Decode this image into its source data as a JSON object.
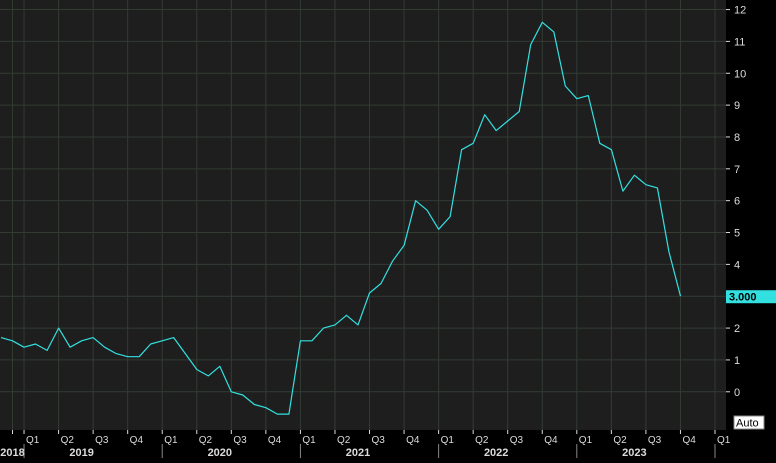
{
  "chart_data": {
    "type": "line",
    "title": "",
    "xlabel": "",
    "ylabel": "",
    "ylim": [
      -1.2,
      12.3
    ],
    "y_ticks": [
      0,
      1,
      2,
      3,
      4,
      5,
      6,
      7,
      8,
      9,
      10,
      11,
      12
    ],
    "grid": true,
    "x_range_months": [
      "2018-11",
      "2024-01"
    ],
    "quarter_ticks": [
      {
        "date": "2018-12",
        "label": ""
      },
      {
        "date": "2019-01",
        "label": "Q1"
      },
      {
        "date": "2019-04",
        "label": "Q2"
      },
      {
        "date": "2019-07",
        "label": "Q3"
      },
      {
        "date": "2019-10",
        "label": "Q4"
      },
      {
        "date": "2020-01",
        "label": "Q1"
      },
      {
        "date": "2020-04",
        "label": "Q2"
      },
      {
        "date": "2020-07",
        "label": "Q3"
      },
      {
        "date": "2020-10",
        "label": "Q4"
      },
      {
        "date": "2021-01",
        "label": "Q1"
      },
      {
        "date": "2021-04",
        "label": "Q2"
      },
      {
        "date": "2021-07",
        "label": "Q3"
      },
      {
        "date": "2021-10",
        "label": "Q4"
      },
      {
        "date": "2022-01",
        "label": "Q1"
      },
      {
        "date": "2022-04",
        "label": "Q2"
      },
      {
        "date": "2022-07",
        "label": "Q3"
      },
      {
        "date": "2022-10",
        "label": "Q4"
      },
      {
        "date": "2023-01",
        "label": "Q1"
      },
      {
        "date": "2023-04",
        "label": "Q2"
      },
      {
        "date": "2023-07",
        "label": "Q3"
      },
      {
        "date": "2023-10",
        "label": "Q4"
      },
      {
        "date": "2024-01",
        "label": "Q1"
      }
    ],
    "year_labels": [
      {
        "label": "2018",
        "date": "2018-12"
      },
      {
        "label": "2019",
        "date": "2019-06"
      },
      {
        "label": "2020",
        "date": "2020-06"
      },
      {
        "label": "2021",
        "date": "2021-06"
      },
      {
        "label": "2022",
        "date": "2022-06"
      },
      {
        "label": "2023",
        "date": "2023-06"
      }
    ],
    "series": [
      {
        "color": "#33e0e0",
        "points": [
          {
            "x": "2018-11",
            "y": 1.7
          },
          {
            "x": "2018-12",
            "y": 1.6
          },
          {
            "x": "2019-01",
            "y": 1.4
          },
          {
            "x": "2019-02",
            "y": 1.5
          },
          {
            "x": "2019-03",
            "y": 1.3
          },
          {
            "x": "2019-04",
            "y": 2.0
          },
          {
            "x": "2019-05",
            "y": 1.4
          },
          {
            "x": "2019-06",
            "y": 1.6
          },
          {
            "x": "2019-07",
            "y": 1.7
          },
          {
            "x": "2019-08",
            "y": 1.4
          },
          {
            "x": "2019-09",
            "y": 1.2
          },
          {
            "x": "2019-10",
            "y": 1.1
          },
          {
            "x": "2019-11",
            "y": 1.1
          },
          {
            "x": "2019-12",
            "y": 1.5
          },
          {
            "x": "2020-01",
            "y": 1.6
          },
          {
            "x": "2020-02",
            "y": 1.7
          },
          {
            "x": "2020-03",
            "y": 1.2
          },
          {
            "x": "2020-04",
            "y": 0.7
          },
          {
            "x": "2020-05",
            "y": 0.5
          },
          {
            "x": "2020-06",
            "y": 0.8
          },
          {
            "x": "2020-07",
            "y": 0.0
          },
          {
            "x": "2020-08",
            "y": -0.1
          },
          {
            "x": "2020-09",
            "y": -0.4
          },
          {
            "x": "2020-10",
            "y": -0.5
          },
          {
            "x": "2020-11",
            "y": -0.7
          },
          {
            "x": "2020-12",
            "y": -0.7
          },
          {
            "x": "2021-01",
            "y": 1.6
          },
          {
            "x": "2021-02",
            "y": 1.6
          },
          {
            "x": "2021-03",
            "y": 2.0
          },
          {
            "x": "2021-04",
            "y": 2.1
          },
          {
            "x": "2021-05",
            "y": 2.4
          },
          {
            "x": "2021-06",
            "y": 2.1
          },
          {
            "x": "2021-07",
            "y": 3.1
          },
          {
            "x": "2021-08",
            "y": 3.4
          },
          {
            "x": "2021-09",
            "y": 4.1
          },
          {
            "x": "2021-10",
            "y": 4.6
          },
          {
            "x": "2021-11",
            "y": 6.0
          },
          {
            "x": "2021-12",
            "y": 5.7
          },
          {
            "x": "2022-01",
            "y": 5.1
          },
          {
            "x": "2022-02",
            "y": 5.5
          },
          {
            "x": "2022-03",
            "y": 7.6
          },
          {
            "x": "2022-04",
            "y": 7.8
          },
          {
            "x": "2022-05",
            "y": 8.7
          },
          {
            "x": "2022-06",
            "y": 8.2
          },
          {
            "x": "2022-07",
            "y": 8.5
          },
          {
            "x": "2022-08",
            "y": 8.8
          },
          {
            "x": "2022-09",
            "y": 10.9
          },
          {
            "x": "2022-10",
            "y": 11.6
          },
          {
            "x": "2022-11",
            "y": 11.3
          },
          {
            "x": "2022-12",
            "y": 9.6
          },
          {
            "x": "2023-01",
            "y": 9.2
          },
          {
            "x": "2023-02",
            "y": 9.3
          },
          {
            "x": "2023-03",
            "y": 7.8
          },
          {
            "x": "2023-04",
            "y": 7.6
          },
          {
            "x": "2023-05",
            "y": 6.3
          },
          {
            "x": "2023-06",
            "y": 6.8
          },
          {
            "x": "2023-07",
            "y": 6.5
          },
          {
            "x": "2023-08",
            "y": 6.4
          },
          {
            "x": "2023-09",
            "y": 4.4
          },
          {
            "x": "2023-10",
            "y": 3.0
          }
        ]
      }
    ],
    "last_value_label": "3.000",
    "auto_button_label": "Auto"
  },
  "colors": {
    "background": "#1e1e1e",
    "grid": "#333b33",
    "line": "#33e0e0",
    "axis_text": "#dcdcdc",
    "label_bg": "#33e0e0",
    "label_text": "#000000"
  }
}
